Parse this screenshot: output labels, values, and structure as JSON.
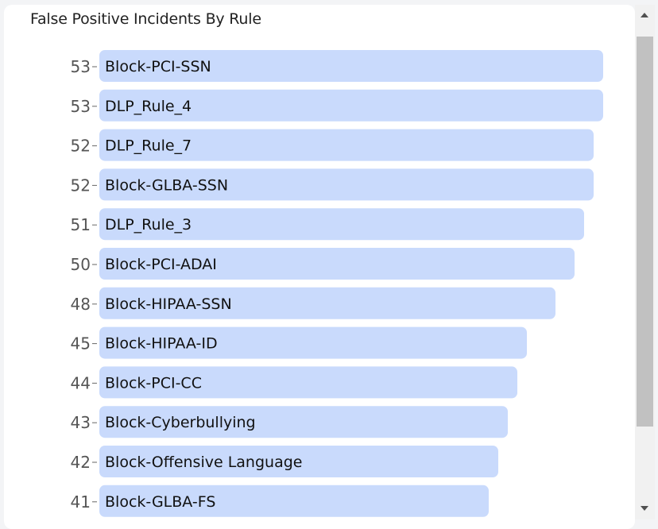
{
  "chart_data": {
    "type": "bar",
    "orientation": "horizontal",
    "title": "False Positive Incidents By Rule",
    "categories": [
      "Block-PCI-SSN",
      "DLP_Rule_4",
      "DLP_Rule_7",
      "Block-GLBA-SSN",
      "DLP_Rule_3",
      "Block-PCI-ADAI",
      "Block-HIPAA-SSN",
      "Block-HIPAA-ID",
      "Block-PCI-CC",
      "Block-Cyberbullying",
      "Block-Offensive Language",
      "Block-GLBA-FS"
    ],
    "values": [
      53,
      53,
      52,
      52,
      51,
      50,
      48,
      45,
      44,
      43,
      42,
      41
    ],
    "xlim": [
      0,
      53
    ],
    "bar_color": "#c9dafc",
    "grid": false
  }
}
